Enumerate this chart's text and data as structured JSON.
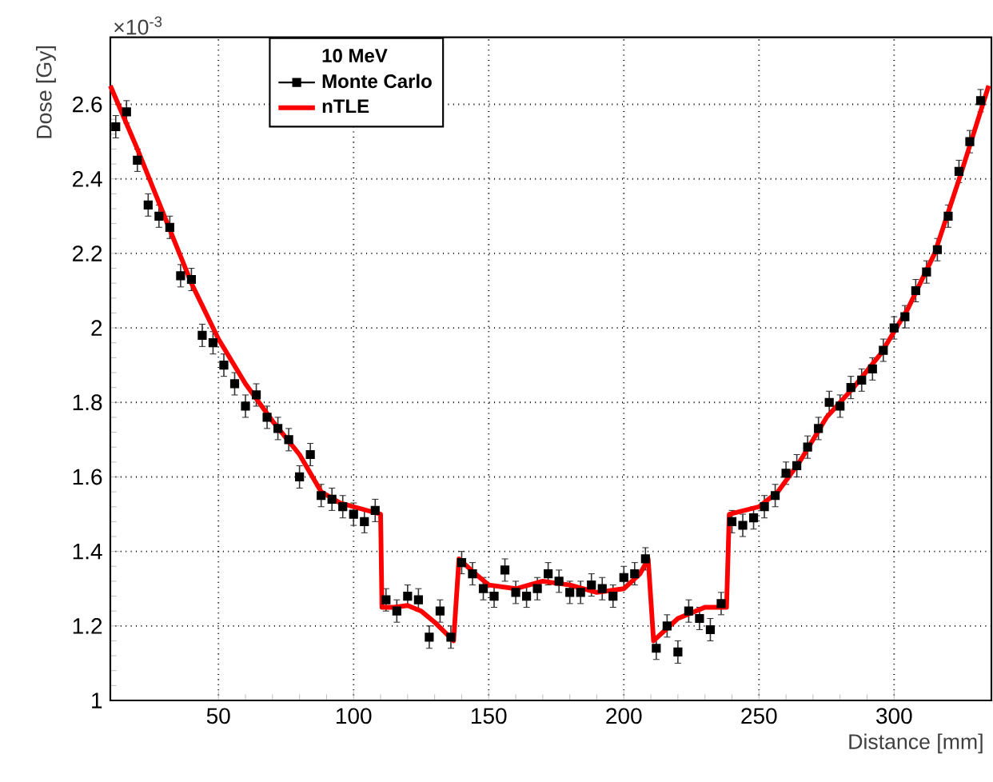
{
  "chart_data": {
    "type": "scatter",
    "xlabel": "Distance [mm]",
    "ylabel": "Dose [Gy]",
    "legend_title": "10 MeV",
    "annotations": [
      "×10$^{-3}$"
    ],
    "xlim": [
      10,
      336
    ],
    "ylim": [
      1,
      2.78
    ],
    "xticks": [
      50,
      100,
      150,
      200,
      250,
      300
    ],
    "yticks": [
      1,
      1.2,
      1.4,
      1.6,
      1.8,
      2,
      2.2,
      2.4,
      2.6
    ],
    "grid": true,
    "legend": "top left",
    "series": [
      {
        "name": "Monte Carlo",
        "marker": "square",
        "color": "#000000",
        "x": [
          12,
          16,
          20,
          24,
          28,
          32,
          36,
          40,
          44,
          48,
          52,
          56,
          60,
          64,
          68,
          72,
          76,
          80,
          84,
          88,
          92,
          96,
          100,
          104,
          108,
          112,
          116,
          120,
          124,
          128,
          132,
          136,
          140,
          144,
          148,
          152,
          156,
          160,
          164,
          168,
          172,
          176,
          180,
          184,
          188,
          192,
          196,
          200,
          204,
          208,
          212,
          216,
          220,
          224,
          228,
          232,
          236,
          240,
          244,
          248,
          252,
          256,
          260,
          264,
          268,
          272,
          276,
          280,
          284,
          288,
          292,
          296,
          300,
          304,
          308,
          312,
          316,
          320,
          324,
          328,
          332
        ],
        "values": [
          2.54,
          2.58,
          2.45,
          2.33,
          2.3,
          2.27,
          2.14,
          2.13,
          1.98,
          1.96,
          1.9,
          1.85,
          1.79,
          1.82,
          1.76,
          1.73,
          1.7,
          1.6,
          1.66,
          1.55,
          1.54,
          1.52,
          1.5,
          1.48,
          1.51,
          1.27,
          1.24,
          1.28,
          1.27,
          1.17,
          1.24,
          1.17,
          1.37,
          1.34,
          1.3,
          1.28,
          1.35,
          1.29,
          1.28,
          1.3,
          1.34,
          1.32,
          1.29,
          1.29,
          1.31,
          1.3,
          1.28,
          1.33,
          1.34,
          1.38,
          1.14,
          1.2,
          1.13,
          1.24,
          1.22,
          1.19,
          1.26,
          1.48,
          1.47,
          1.49,
          1.52,
          1.55,
          1.61,
          1.63,
          1.68,
          1.73,
          1.8,
          1.79,
          1.84,
          1.86,
          1.89,
          1.94,
          2.0,
          2.03,
          2.1,
          2.15,
          2.21,
          2.3,
          2.42,
          2.5,
          2.61
        ],
        "errors": [
          0.03,
          0.03,
          0.03,
          0.03,
          0.03,
          0.03,
          0.03,
          0.03,
          0.03,
          0.03,
          0.03,
          0.03,
          0.03,
          0.03,
          0.03,
          0.03,
          0.03,
          0.03,
          0.03,
          0.03,
          0.03,
          0.03,
          0.03,
          0.03,
          0.03,
          0.03,
          0.03,
          0.03,
          0.03,
          0.03,
          0.03,
          0.03,
          0.03,
          0.03,
          0.03,
          0.03,
          0.03,
          0.03,
          0.03,
          0.03,
          0.03,
          0.03,
          0.03,
          0.03,
          0.03,
          0.03,
          0.03,
          0.03,
          0.03,
          0.03,
          0.03,
          0.03,
          0.03,
          0.03,
          0.03,
          0.03,
          0.03,
          0.03,
          0.03,
          0.03,
          0.03,
          0.03,
          0.03,
          0.03,
          0.03,
          0.03,
          0.03,
          0.03,
          0.03,
          0.03,
          0.03,
          0.03,
          0.03,
          0.03,
          0.03,
          0.03,
          0.03,
          0.03,
          0.03,
          0.03,
          0.03
        ]
      },
      {
        "name": "nTLE",
        "type": "line",
        "marker": "none",
        "line_style": "solid",
        "color": "#ff0000",
        "x": [
          10,
          20,
          30,
          40,
          50,
          60,
          70,
          80,
          88,
          95,
          100,
          110,
          110.5,
          115,
          120,
          125,
          130,
          137,
          139,
          145,
          150,
          160,
          170,
          180,
          190,
          200,
          206,
          209,
          211,
          220,
          230,
          238,
          239,
          250,
          257,
          265,
          275,
          285,
          295,
          305,
          315,
          325,
          335
        ],
        "values": [
          2.65,
          2.48,
          2.3,
          2.12,
          1.97,
          1.85,
          1.75,
          1.66,
          1.56,
          1.53,
          1.52,
          1.5,
          1.25,
          1.25,
          1.255,
          1.24,
          1.21,
          1.16,
          1.38,
          1.34,
          1.31,
          1.3,
          1.32,
          1.31,
          1.29,
          1.3,
          1.34,
          1.38,
          1.16,
          1.22,
          1.25,
          1.25,
          1.5,
          1.52,
          1.56,
          1.64,
          1.76,
          1.84,
          1.93,
          2.05,
          2.2,
          2.42,
          2.65
        ]
      }
    ]
  }
}
